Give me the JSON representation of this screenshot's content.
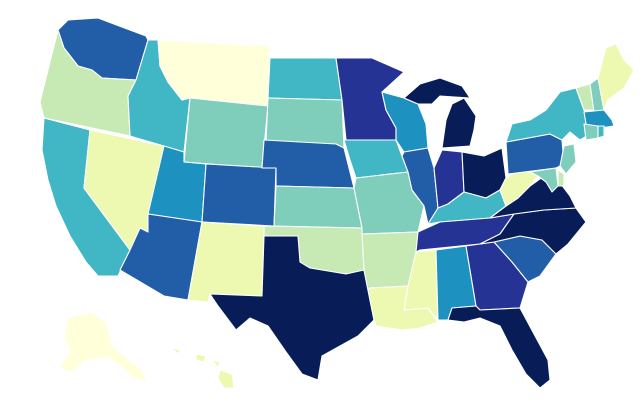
{
  "map": {
    "type": "choropleth",
    "region": "United States",
    "color_scale": [
      "#ffffd9",
      "#edf8b1",
      "#c7e9b4",
      "#7fcdbb",
      "#41b6c4",
      "#1d91c0",
      "#225ea8",
      "#253494",
      "#081d58"
    ],
    "states": [
      {
        "code": "WA",
        "level": 6
      },
      {
        "code": "OR",
        "level": 2
      },
      {
        "code": "CA",
        "level": 4
      },
      {
        "code": "NV",
        "level": 1
      },
      {
        "code": "ID",
        "level": 4
      },
      {
        "code": "MT",
        "level": 0
      },
      {
        "code": "WY",
        "level": 3
      },
      {
        "code": "UT",
        "level": 5
      },
      {
        "code": "AZ",
        "level": 6
      },
      {
        "code": "CO",
        "level": 6
      },
      {
        "code": "NM",
        "level": 1
      },
      {
        "code": "ND",
        "level": 4
      },
      {
        "code": "SD",
        "level": 3
      },
      {
        "code": "NE",
        "level": 6
      },
      {
        "code": "KS",
        "level": 3
      },
      {
        "code": "OK",
        "level": 2
      },
      {
        "code": "TX",
        "level": 8
      },
      {
        "code": "MN",
        "level": 7
      },
      {
        "code": "IA",
        "level": 4
      },
      {
        "code": "MO",
        "level": 3
      },
      {
        "code": "AR",
        "level": 2
      },
      {
        "code": "LA",
        "level": 1
      },
      {
        "code": "WI",
        "level": 5
      },
      {
        "code": "IL",
        "level": 6
      },
      {
        "code": "MI",
        "level": 8
      },
      {
        "code": "IN",
        "level": 7
      },
      {
        "code": "OH",
        "level": 8
      },
      {
        "code": "KY",
        "level": 4
      },
      {
        "code": "TN",
        "level": 7
      },
      {
        "code": "MS",
        "level": 1
      },
      {
        "code": "AL",
        "level": 5
      },
      {
        "code": "GA",
        "level": 7
      },
      {
        "code": "FL",
        "level": 8
      },
      {
        "code": "SC",
        "level": 6
      },
      {
        "code": "NC",
        "level": 8
      },
      {
        "code": "VA",
        "level": 8
      },
      {
        "code": "WV",
        "level": 1
      },
      {
        "code": "PA",
        "level": 6
      },
      {
        "code": "NY",
        "level": 4
      },
      {
        "code": "VT",
        "level": 2
      },
      {
        "code": "NH",
        "level": 3
      },
      {
        "code": "ME",
        "level": 1
      },
      {
        "code": "MA",
        "level": 5
      },
      {
        "code": "CT",
        "level": 3
      },
      {
        "code": "RI",
        "level": 4
      },
      {
        "code": "NJ",
        "level": 3
      },
      {
        "code": "DE",
        "level": 2
      },
      {
        "code": "MD",
        "level": 3
      },
      {
        "code": "AK",
        "level": 0
      },
      {
        "code": "HI",
        "level": 1
      }
    ]
  }
}
